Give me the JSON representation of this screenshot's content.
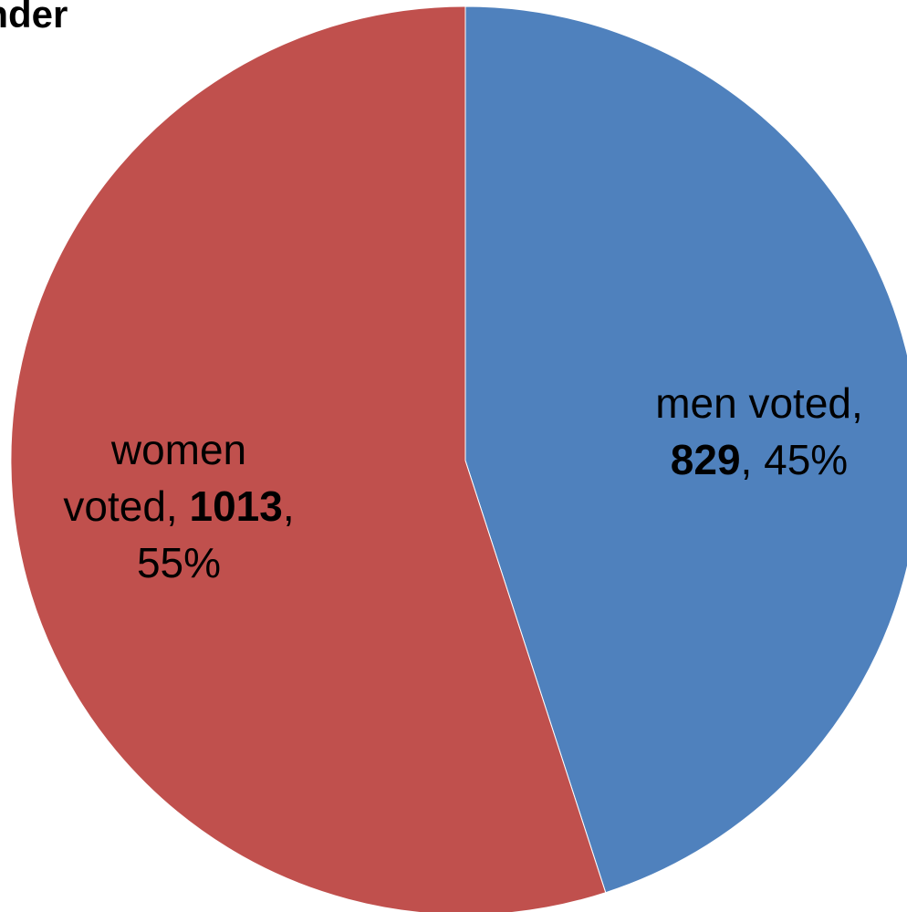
{
  "chart_data": {
    "type": "pie",
    "title": "ender",
    "start_angle_deg": 0,
    "direction": "clockwise",
    "slices": [
      {
        "name": "men voted",
        "value": 829,
        "percent": "45%",
        "color": "#4f81bd"
      },
      {
        "name": "women voted",
        "value": 1013,
        "percent": "55%",
        "color": "#c0504d"
      }
    ],
    "labels": [
      {
        "slice": "men voted",
        "lines": [
          [
            {
              "text": "men voted,",
              "bold": false
            }
          ],
          [
            {
              "text": "829",
              "bold": true
            },
            {
              "text": ", 45%",
              "bold": false
            }
          ]
        ]
      },
      {
        "slice": "women voted",
        "lines": [
          [
            {
              "text": "women",
              "bold": false
            }
          ],
          [
            {
              "text": "voted, ",
              "bold": false
            },
            {
              "text": "1013",
              "bold": true
            },
            {
              "text": ",",
              "bold": false
            }
          ],
          [
            {
              "text": "55%",
              "bold": false
            }
          ]
        ]
      }
    ],
    "legend": "none"
  }
}
